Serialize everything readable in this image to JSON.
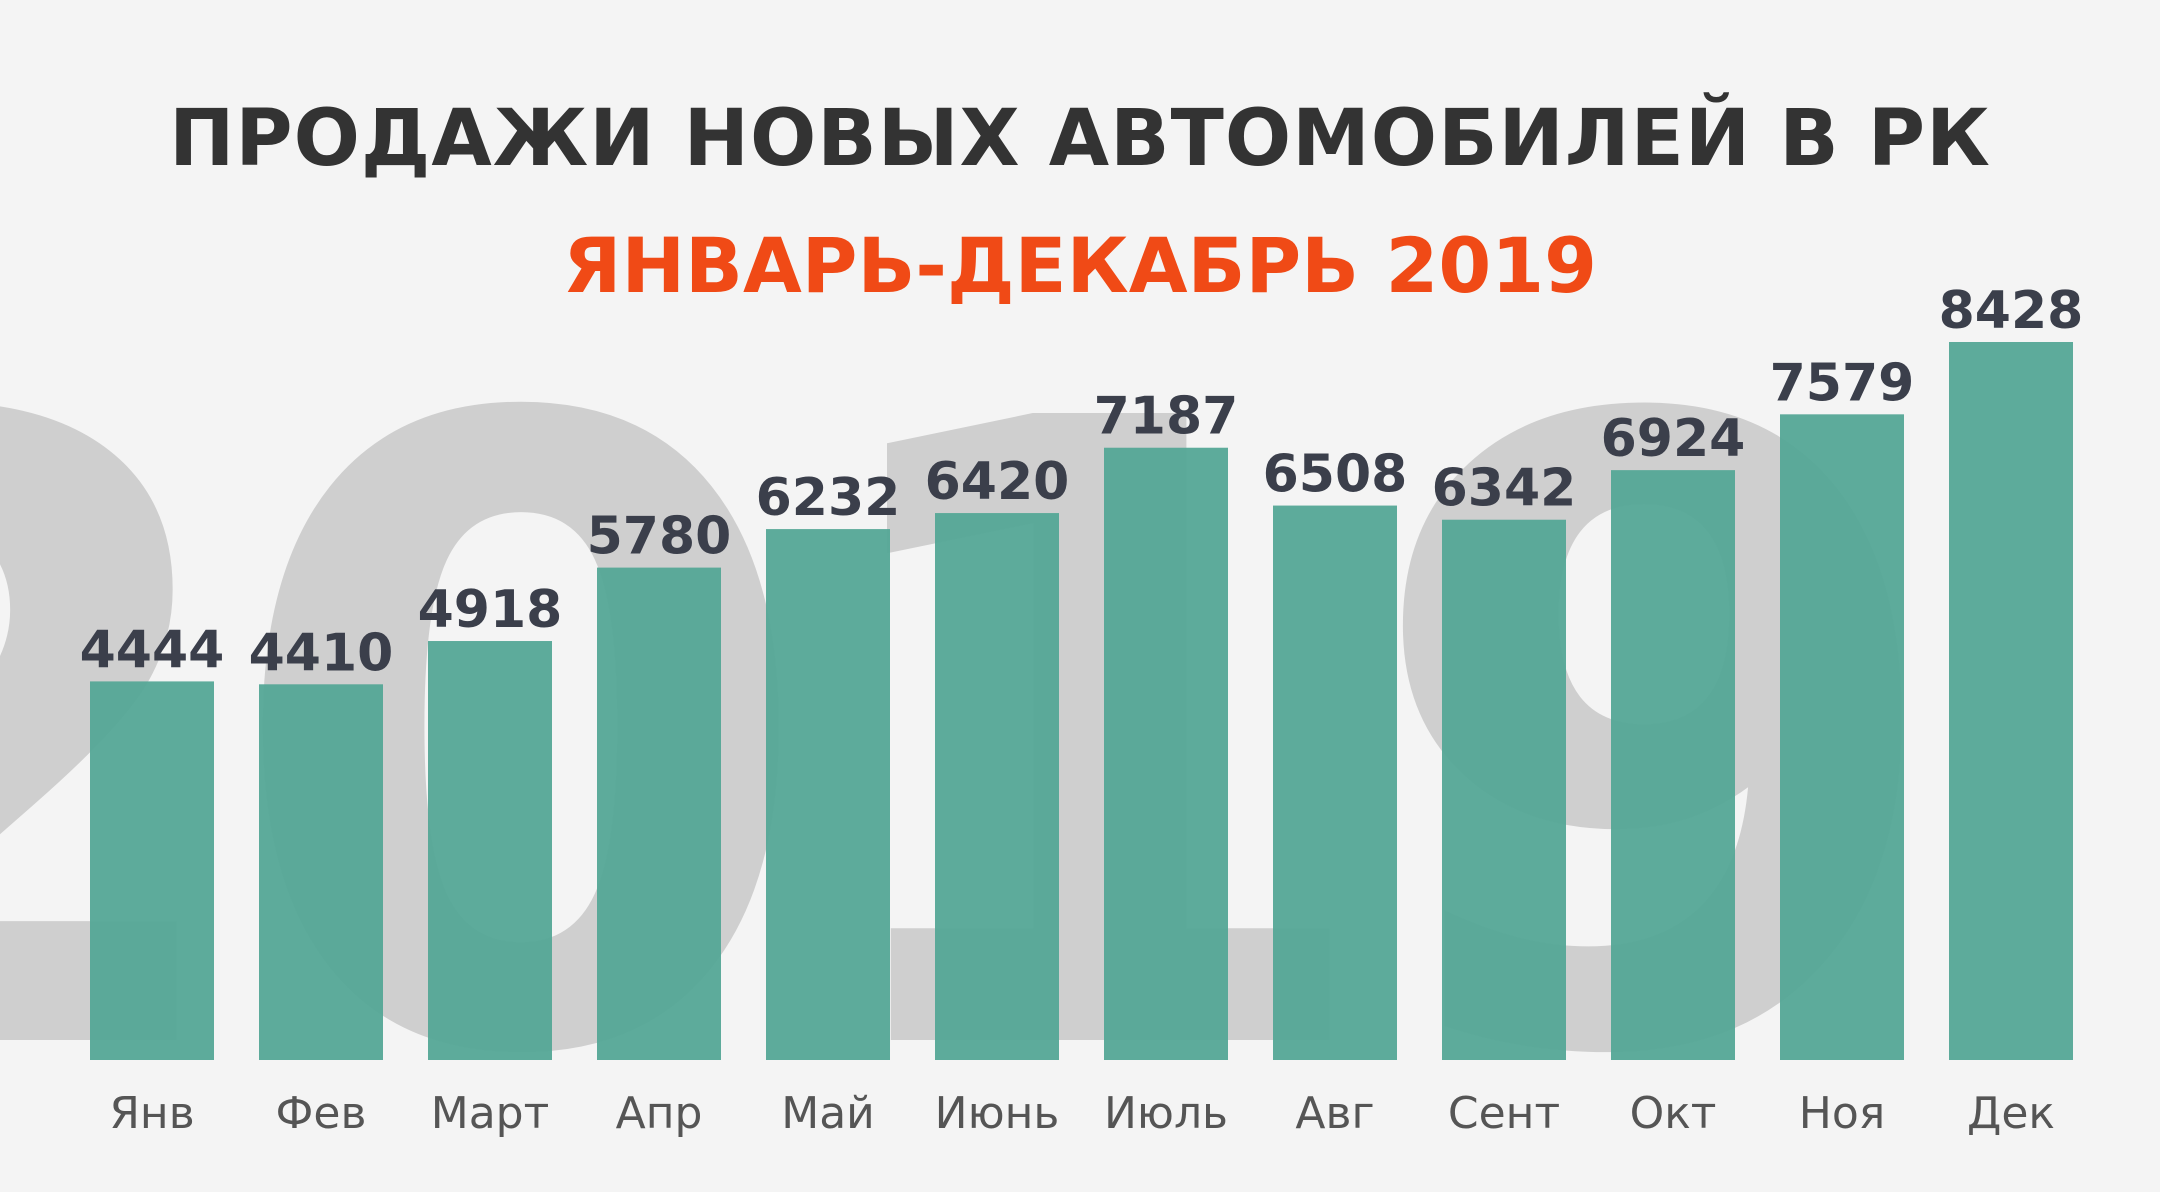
{
  "title": "ПРОДАЖИ НОВЫХ АВТОМОБИЛЕЙ В РК",
  "subtitle": "ЯНВАРЬ-ДЕКАБРЬ 2019",
  "watermark": "2019",
  "colors": {
    "bar": "#56a897",
    "title": "#333333",
    "subtitle": "#f04a16",
    "value_label": "#3b3f4b",
    "category_label": "#555555",
    "watermark": "#cfcfcf",
    "background": "#f4f4f4"
  },
  "chart_data": {
    "type": "bar",
    "title": "ПРОДАЖИ НОВЫХ АВТОМОБИЛЕЙ В РК",
    "subtitle": "ЯНВАРЬ-ДЕКАБРЬ 2019",
    "categories": [
      "Янв",
      "Фев",
      "Март",
      "Апр",
      "Май",
      "Июнь",
      "Июль",
      "Авг",
      "Сент",
      "Окт",
      "Ноя",
      "Дек"
    ],
    "values": [
      4444,
      4410,
      4918,
      5780,
      6232,
      6420,
      7187,
      6508,
      6342,
      6924,
      7579,
      8428
    ],
    "xlabel": "",
    "ylabel": "",
    "grid": false,
    "legend": "none"
  }
}
